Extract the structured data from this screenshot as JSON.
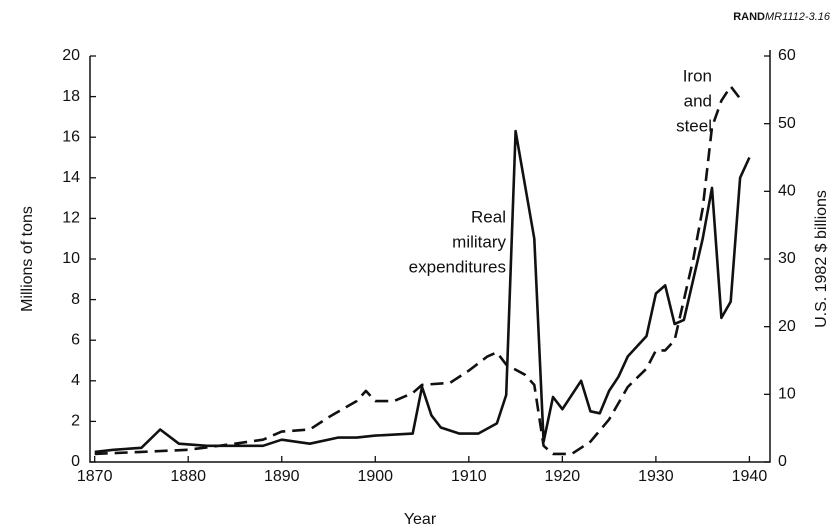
{
  "chart_data": {
    "type": "line",
    "source": {
      "org": "RAND",
      "id": "MR1112-3.16"
    },
    "x_label": "Year",
    "y_label": "Millions of tons",
    "y2_label": "U.S. 1982 $ billions",
    "xlim": [
      1869.5,
      1942.2
    ],
    "xticks": [
      1870,
      1880,
      1890,
      1900,
      1910,
      1920,
      1930,
      1940
    ],
    "ylim": [
      0,
      20
    ],
    "yticks": [
      0,
      2,
      4,
      6,
      8,
      10,
      12,
      14,
      16,
      18,
      20
    ],
    "y2lim": [
      0,
      60
    ],
    "y2ticks": [
      0,
      10,
      20,
      30,
      40,
      50,
      60
    ],
    "series": [
      {
        "name": "Real military expenditures",
        "label_lines": [
          "Real",
          "military",
          "expenditures"
        ],
        "color": "#111111",
        "dash": "solid",
        "axis": "y2",
        "x": [
          1870,
          1872,
          1875,
          1877,
          1879,
          1882,
          1885,
          1888,
          1890,
          1893,
          1896,
          1898,
          1900,
          1904,
          1905,
          1906,
          1907,
          1909,
          1911,
          1913,
          1914,
          1915,
          1917,
          1918,
          1919,
          1920,
          1922,
          1923,
          1924,
          1925,
          1926,
          1927,
          1929,
          1930,
          1931,
          1932,
          1933,
          1935,
          1936,
          1937,
          1938,
          1939,
          1940
        ],
        "values": [
          1.5,
          1.8,
          2.1,
          4.8,
          2.7,
          2.4,
          2.4,
          2.4,
          3.3,
          2.7,
          3.6,
          3.6,
          3.9,
          4.2,
          11.1,
          6.9,
          5.1,
          4.2,
          4.2,
          5.7,
          9.9,
          48.9,
          33,
          3,
          9.6,
          7.8,
          12,
          7.5,
          7.2,
          10.5,
          12.6,
          15.6,
          18.6,
          24.9,
          26.1,
          20.4,
          21,
          33,
          40.5,
          21.3,
          23.7,
          42,
          45
        ]
      },
      {
        "name": "Iron and steel",
        "label_lines": [
          "Iron",
          "and",
          "steel"
        ],
        "color": "#111111",
        "dash": "dashed",
        "axis": "y",
        "x": [
          1870,
          1875,
          1880,
          1885,
          1888,
          1890,
          1893,
          1895,
          1898,
          1899,
          1900,
          1902,
          1904,
          1905,
          1908,
          1910,
          1912,
          1913,
          1914,
          1916,
          1917,
          1918,
          1919,
          1921,
          1922,
          1923,
          1925,
          1927,
          1929,
          1930,
          1931,
          1932,
          1934,
          1935,
          1936,
          1937,
          1938,
          1939
        ],
        "values": [
          0.4,
          0.5,
          0.6,
          0.9,
          1.1,
          1.5,
          1.6,
          2.2,
          3.0,
          3.5,
          3.0,
          3.0,
          3.4,
          3.8,
          3.9,
          4.5,
          5.2,
          5.4,
          4.8,
          4.3,
          3.8,
          0.8,
          0.4,
          0.4,
          0.7,
          1.0,
          2.1,
          3.7,
          4.6,
          5.5,
          5.5,
          6.0,
          10,
          12.5,
          16.5,
          17.8,
          18.5,
          17.9
        ]
      }
    ]
  }
}
